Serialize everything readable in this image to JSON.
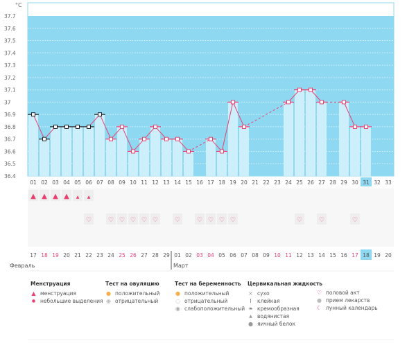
{
  "unit": "°C",
  "chart_data": {
    "type": "bar",
    "title": "",
    "ylabel": "°C",
    "ylim": [
      36.4,
      37.7
    ],
    "yticks": [
      "37.7",
      "37.6",
      "37.5",
      "37.4",
      "37.3",
      "37.2",
      "37.1",
      "37",
      "36.9",
      "36.8",
      "36.7",
      "36.6",
      "36.5",
      "36.4"
    ],
    "cycle_days": [
      "01",
      "02",
      "03",
      "04",
      "05",
      "06",
      "07",
      "08",
      "09",
      "10",
      "11",
      "12",
      "13",
      "14",
      "15",
      "16",
      "17",
      "18",
      "19",
      "20",
      "21",
      "22",
      "23",
      "24",
      "25",
      "26",
      "27",
      "28",
      "29",
      "30",
      "31",
      "32",
      "33"
    ],
    "current_cycle_day": "31",
    "temperatures": [
      36.9,
      36.7,
      36.8,
      36.8,
      36.8,
      36.8,
      36.9,
      36.7,
      36.8,
      36.6,
      36.7,
      36.8,
      36.7,
      36.7,
      36.6,
      null,
      36.7,
      36.6,
      37.0,
      36.8,
      null,
      null,
      null,
      37.0,
      37.1,
      37.1,
      37.0,
      null,
      37.0,
      36.8,
      36.8,
      null,
      null
    ],
    "excluded_days": [
      "01",
      "02",
      "03",
      "04",
      "05",
      "06",
      "07"
    ],
    "menstruation": {
      "heavy": [
        "01",
        "02",
        "03",
        "04"
      ],
      "light": [
        "05",
        "06"
      ]
    },
    "intercourse_days": [
      "06",
      "08",
      "09",
      "10",
      "11",
      "12",
      "14",
      "16",
      "17",
      "18",
      "19",
      "25",
      "27",
      "30"
    ],
    "dates": [
      "17",
      "18",
      "19",
      "20",
      "21",
      "22",
      "23",
      "24",
      "25",
      "26",
      "27",
      "28",
      "29",
      "01",
      "02",
      "03",
      "04",
      "05",
      "06",
      "07",
      "08",
      "09",
      "10",
      "11",
      "12",
      "13",
      "14",
      "15",
      "16",
      "17",
      "18",
      "19",
      "20"
    ],
    "weekend_date_indexes": [
      1,
      2,
      8,
      9,
      15,
      16,
      22,
      23,
      29
    ],
    "today_date": "18",
    "months": [
      "Февраль",
      "Март"
    ],
    "colors": {
      "bg": "#8fd8f2",
      "bar": "#cdeefb",
      "line": "#e8406f",
      "excluded": "#222222",
      "highlight": "#8fd8f2",
      "weekend": "#e8406f"
    }
  },
  "legend": {
    "menstruation": {
      "title": "Менструация",
      "items": [
        "менструация",
        "небольшие выделения"
      ]
    },
    "ovulation": {
      "title": "Тест на овуляцию",
      "items": [
        "положительный",
        "отрицательный"
      ]
    },
    "pregnancy": {
      "title": "Тест на беременность",
      "items": [
        "положительный",
        "отрицательный",
        "слабоположительный"
      ]
    },
    "cervical": {
      "title": "Цервикальная жидкость",
      "items": [
        "сухо",
        "клейкая",
        "кремообразная",
        "водянистая",
        "яичный белок"
      ]
    },
    "other": {
      "items": [
        "половой акт",
        "прием лекарств",
        "лунный календарь"
      ]
    }
  }
}
